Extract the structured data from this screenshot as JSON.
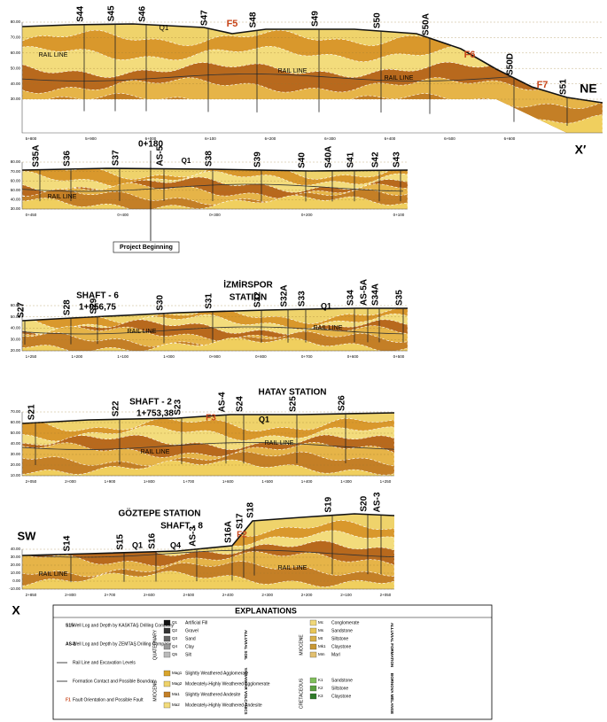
{
  "panels": [
    {
      "boreholes": [
        "S44",
        "S45",
        "S46",
        "S47",
        "S48",
        "S49",
        "S50",
        "S50A",
        "S50D",
        "S51"
      ],
      "elevations": [
        "80.00",
        "70.00",
        "60.00",
        "50.00",
        "40.00",
        "30.00"
      ],
      "chainages": [
        "5+800",
        "5+900",
        "6+000",
        "6+100",
        "6+200",
        "6+300",
        "6+400",
        "6+500",
        "6+600"
      ],
      "labels": [
        "F5",
        "F6",
        "F7",
        "Q1",
        "RAIL LINE",
        "RAIL LINE",
        "RAIL LINE",
        "NE",
        "X′"
      ]
    },
    {
      "boreholes": [
        "S35A",
        "S36",
        "S37",
        "AS-5",
        "S38",
        "S39",
        "S40",
        "S40A",
        "S41",
        "S42",
        "S43"
      ],
      "elevations": [
        "80.00",
        "70.00",
        "60.00",
        "50.00",
        "40.00",
        "30.00"
      ],
      "chainages": [
        "0+450",
        "0+400",
        "0+300",
        "0+200",
        "0+100"
      ],
      "labels": [
        "0+180",
        "Q1",
        "RAIL LINE",
        "Project Beginning"
      ]
    },
    {
      "boreholes": [
        "S27",
        "S28",
        "S29",
        "S30",
        "S31",
        "S32",
        "S32A",
        "S33",
        "S34",
        "AS-5A",
        "S34A",
        "S35"
      ],
      "elevations": [
        "60.00",
        "50.00",
        "40.00",
        "30.00",
        "20.00"
      ],
      "chainages": [
        "1+250",
        "1+200",
        "1+100",
        "1+000",
        "0+900",
        "0+800",
        "0+700",
        "0+600",
        "0+500"
      ],
      "labels": [
        "SHAFT - 6",
        "1+056,75",
        "İZMİRSPOR",
        "STATION",
        "Q1",
        "RAIL LINE",
        "RAIL LINE"
      ]
    },
    {
      "boreholes": [
        "S21",
        "S22",
        "S23",
        "AS-4",
        "S24",
        "S25",
        "S26"
      ],
      "elevations": [
        "70.00",
        "60.00",
        "50.00",
        "40.00",
        "30.00",
        "20.00",
        "10.00"
      ],
      "chainages": [
        "2+050",
        "2+000",
        "1+900",
        "1+800",
        "1+700",
        "1+600",
        "1+500",
        "1+400",
        "1+300",
        "1+250"
      ],
      "labels": [
        "SHAFT - 2",
        "1+753,38",
        "HATAY STATION",
        "F3",
        "Q1",
        "RAIL LINE",
        "RAIL LINE"
      ]
    },
    {
      "boreholes": [
        "S14",
        "S15",
        "S16",
        "AS-3",
        "S16A",
        "S17",
        "S18",
        "S19",
        "S20",
        "AS-3"
      ],
      "elevations": [
        "40.00",
        "30.00",
        "20.00",
        "10.00",
        "0.00",
        "-10.00"
      ],
      "chainages": [
        "2+850",
        "2+800",
        "2+700",
        "2+600",
        "2+500",
        "2+400",
        "2+300",
        "2+200",
        "2+100",
        "2+050"
      ],
      "labels": [
        "GÖZTEPE STATION",
        "SHAFT - 8",
        "Q1",
        "Q4",
        "F2",
        "RAIL LINE",
        "RAIL LINE",
        "SW",
        "X"
      ]
    }
  ],
  "legend": {
    "title": "EXPLANATIONS",
    "symbols": [
      [
        "S15",
        "Well Log and Depth by KASKTAŞ Drilling Company"
      ],
      [
        "AS-2",
        "Well Log and Depth by ZEMTAŞ Drilling Company"
      ],
      [
        "",
        "Rail Line and Excavation Levels"
      ],
      [
        "",
        "Formation Contact and Possible Boundary"
      ],
      [
        "F1",
        "Fault Orientation and Possible Fault"
      ]
    ],
    "groups": [
      {
        "era": "QUATERNARY",
        "unit": "ALLUVIAL SOIL",
        "items": [
          [
            "Q1",
            "Artificial Fill"
          ],
          [
            "Q2",
            "Gravel"
          ],
          [
            "Q3",
            "Sand"
          ],
          [
            "Q4",
            "Clay"
          ],
          [
            "Q5",
            "Silt"
          ]
        ]
      },
      {
        "era": "MIOCENE",
        "unit": "YAMANLAR VOLCANICS",
        "items": [
          [
            "Mag1",
            "Slightly Weathered Agglomerate"
          ],
          [
            "Mag2",
            "Moderately-Highly Weathered Agglomerate"
          ],
          [
            "Ma1",
            "Slightly Weathered Andesite"
          ],
          [
            "Ma2",
            "Moderately-Highly Weathered Andesite"
          ]
        ]
      },
      {
        "era": "MIOCENE",
        "unit": "ALLUVIAL FORMATION",
        "items": [
          [
            "Mc",
            "Conglomerate"
          ],
          [
            "Ms",
            "Sandstone"
          ],
          [
            "Mt",
            "Siltstone"
          ],
          [
            "Mk1",
            "Claystone"
          ],
          [
            "Mm",
            "Marl"
          ]
        ]
      },
      {
        "era": "CRETACEOUS",
        "unit": "BORNOVA MÉLANGE",
        "items": [
          [
            "K1",
            "Sandstone"
          ],
          [
            "K2",
            "Siltstone"
          ],
          [
            "K3",
            "Claystone"
          ]
        ]
      }
    ]
  }
}
